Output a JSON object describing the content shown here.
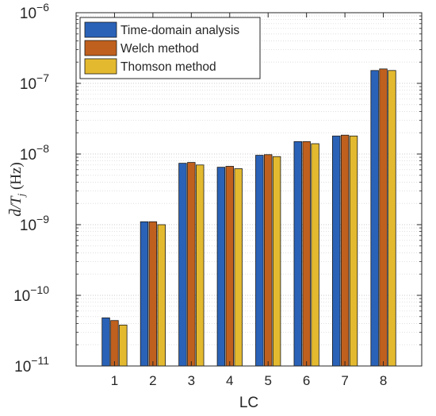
{
  "chart_data": {
    "type": "bar",
    "title": "",
    "xlabel": "LC",
    "ylabel": "d̄/T",
    "ylabel_subscript": "j",
    "ylabel_unit": " (Hz)",
    "yscale": "log",
    "ylim": [
      1e-11,
      1e-06
    ],
    "yticks": [
      {
        "base": "10",
        "exp": "−11",
        "value": 1e-11
      },
      {
        "base": "10",
        "exp": "−10",
        "value": 1e-10
      },
      {
        "base": "10",
        "exp": "−9",
        "value": 1e-09
      },
      {
        "base": "10",
        "exp": "−8",
        "value": 1e-08
      },
      {
        "base": "10",
        "exp": "−7",
        "value": 1e-07
      },
      {
        "base": "10",
        "exp": "−6",
        "value": 1e-06
      }
    ],
    "categories": [
      "1",
      "2",
      "3",
      "4",
      "5",
      "6",
      "7",
      "8"
    ],
    "grid": true,
    "legend_position": "top-left",
    "series": [
      {
        "name": "Time-domain analysis",
        "color": "#2a62b8",
        "values": [
          4.8e-11,
          1.1e-09,
          7.4e-09,
          6.5e-09,
          9.6e-09,
          1.5e-08,
          1.8e-08,
          1.52e-07
        ]
      },
      {
        "name": "Welch method",
        "color": "#c0601e",
        "values": [
          4.4e-11,
          1.1e-09,
          7.6e-09,
          6.7e-09,
          9.8e-09,
          1.5e-08,
          1.85e-08,
          1.6e-07
        ]
      },
      {
        "name": "Thomson method",
        "color": "#e3b92f",
        "values": [
          3.8e-11,
          1e-09,
          7e-09,
          6.2e-09,
          9.2e-09,
          1.4e-08,
          1.8e-08,
          1.52e-07
        ]
      }
    ]
  }
}
